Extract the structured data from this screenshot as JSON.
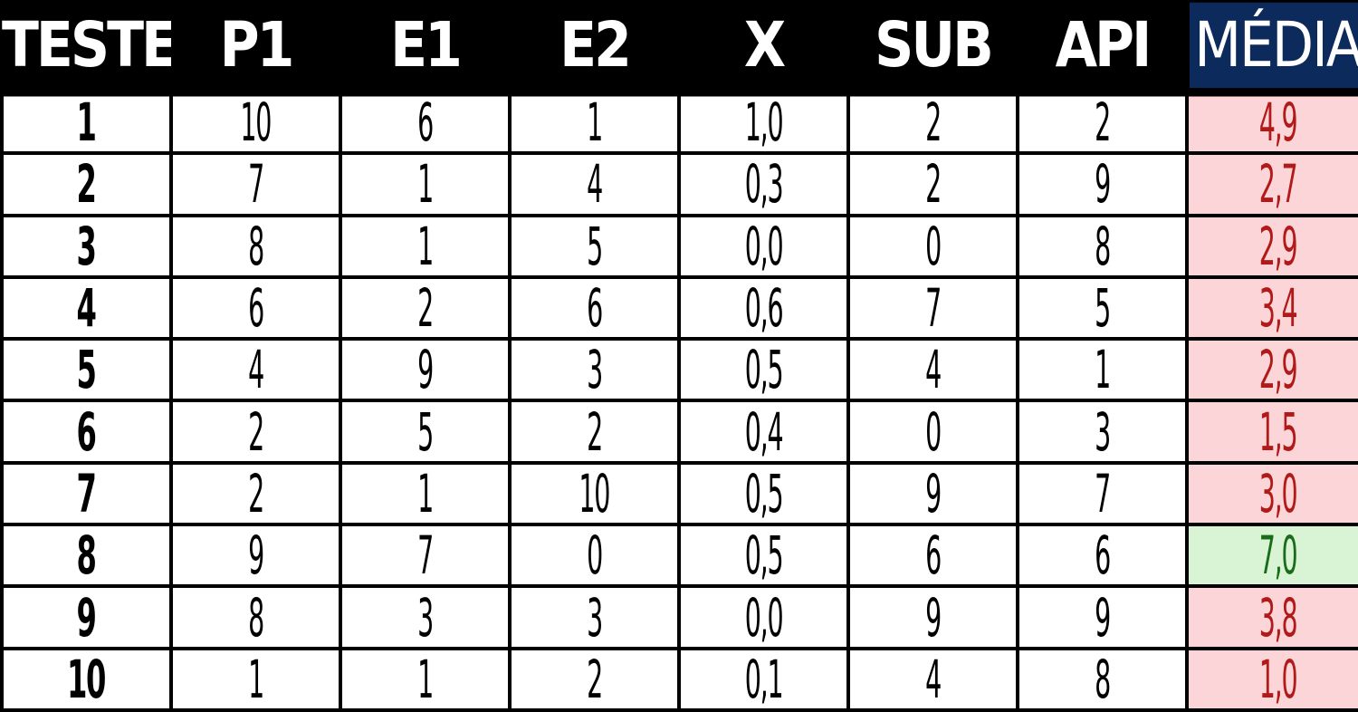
{
  "table": {
    "headers": [
      "TESTE",
      "P1",
      "E1",
      "E2",
      "X",
      "SUB",
      "API",
      "MÉDIA"
    ],
    "rows": [
      {
        "teste": "1",
        "p1": "10",
        "e1": "6",
        "e2": "1",
        "x": "1,0",
        "sub": "2",
        "api": "2",
        "media": "4,9",
        "status": "below"
      },
      {
        "teste": "2",
        "p1": "7",
        "e1": "1",
        "e2": "4",
        "x": "0,3",
        "sub": "2",
        "api": "9",
        "media": "2,7",
        "status": "below"
      },
      {
        "teste": "3",
        "p1": "8",
        "e1": "1",
        "e2": "5",
        "x": "0,0",
        "sub": "0",
        "api": "8",
        "media": "2,9",
        "status": "below"
      },
      {
        "teste": "4",
        "p1": "6",
        "e1": "2",
        "e2": "6",
        "x": "0,6",
        "sub": "7",
        "api": "5",
        "media": "3,4",
        "status": "below"
      },
      {
        "teste": "5",
        "p1": "4",
        "e1": "9",
        "e2": "3",
        "x": "0,5",
        "sub": "4",
        "api": "1",
        "media": "2,9",
        "status": "below"
      },
      {
        "teste": "6",
        "p1": "2",
        "e1": "5",
        "e2": "2",
        "x": "0,4",
        "sub": "0",
        "api": "3",
        "media": "1,5",
        "status": "below"
      },
      {
        "teste": "7",
        "p1": "2",
        "e1": "1",
        "e2": "10",
        "x": "0,5",
        "sub": "9",
        "api": "7",
        "media": "3,0",
        "status": "below"
      },
      {
        "teste": "8",
        "p1": "9",
        "e1": "7",
        "e2": "0",
        "x": "0,5",
        "sub": "6",
        "api": "6",
        "media": "7,0",
        "status": "above"
      },
      {
        "teste": "9",
        "p1": "8",
        "e1": "3",
        "e2": "3",
        "x": "0,0",
        "sub": "9",
        "api": "9",
        "media": "3,8",
        "status": "below"
      },
      {
        "teste": "10",
        "p1": "1",
        "e1": "1",
        "e2": "2",
        "x": "0,1",
        "sub": "4",
        "api": "8",
        "media": "1,0",
        "status": "below"
      }
    ]
  },
  "colors": {
    "header_bg": "#000000",
    "header_text": "#ffffff",
    "media_header_bg": "#0c2a5c",
    "below_bg": "#fbd5d7",
    "below_text": "#b21a1a",
    "above_bg": "#d8f4d5",
    "above_text": "#1a6b1a"
  }
}
